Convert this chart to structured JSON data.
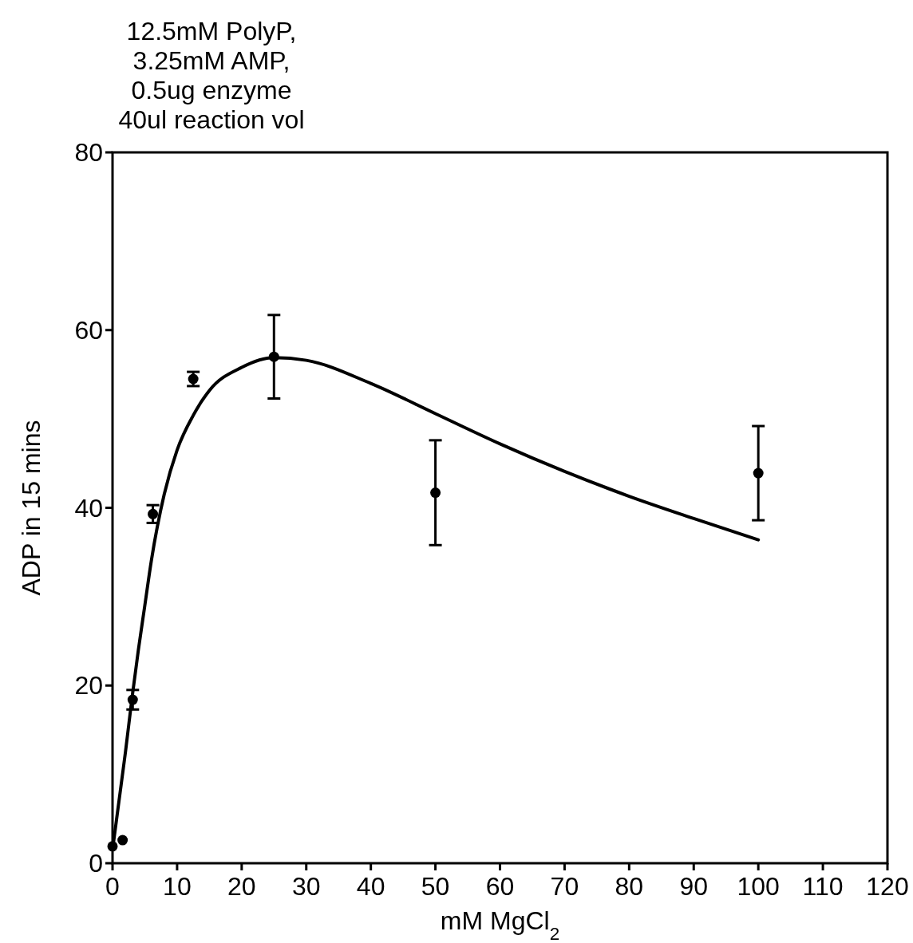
{
  "chart_data": {
    "type": "scatter",
    "title": "12.5mM PolyP,\n3.25mM AMP,\n0.5ug enzyme\n40ul reaction vol",
    "xlabel": "mM MgCl$_{2}$",
    "ylabel": "ADP in 15 mins",
    "xlim": [
      0,
      120
    ],
    "ylim": [
      0,
      80
    ],
    "xticks": [
      0,
      10,
      20,
      30,
      40,
      50,
      60,
      70,
      80,
      90,
      100,
      110,
      120
    ],
    "yticks": [
      0,
      20,
      40,
      60,
      80
    ],
    "grid": false,
    "series": [
      {
        "color": "#000000",
        "marker": "circle",
        "x": [
          0,
          1.5625,
          3.125,
          6.25,
          12.5,
          25,
          50,
          100
        ],
        "values": [
          1.9,
          2.6,
          18.4,
          39.3,
          54.5,
          57.0,
          41.7,
          43.9
        ],
        "errors": [
          null,
          null,
          1.1,
          1.0,
          0.8,
          4.7,
          5.9,
          5.3
        ]
      },
      {
        "type": "line",
        "color": "#000000",
        "marker": "none",
        "line_style": "solid",
        "x": [
          0,
          1,
          2,
          3,
          4,
          5,
          6,
          8,
          10,
          12.5,
          15,
          20,
          25,
          30,
          40,
          50,
          60,
          70,
          80,
          90,
          100
        ],
        "values": [
          1.5,
          7,
          12.5,
          18.5,
          24,
          29,
          34,
          41.5,
          46.5,
          50.4,
          53.2,
          55.8,
          56.9,
          56.6,
          54.0,
          50.6,
          47.2,
          44.1,
          41.3,
          38.8,
          36.4
        ]
      }
    ]
  }
}
